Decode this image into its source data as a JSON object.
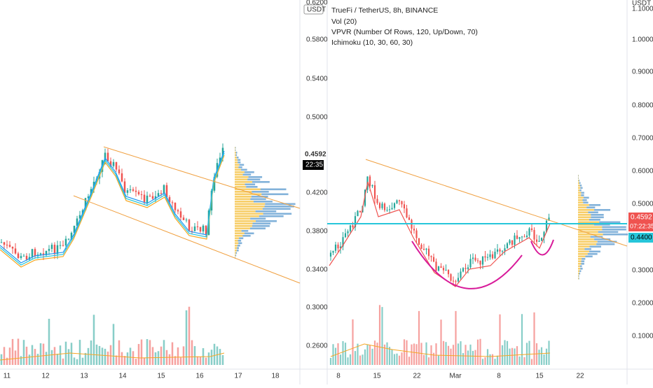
{
  "left_panel": {
    "unit": "USDT",
    "top_tick": "0.6200",
    "yticks": [
      "0.5800",
      "0.5400",
      "0.5000",
      "0.4200",
      "0.3800",
      "0.3400",
      "0.3000",
      "0.2600"
    ],
    "price_tag": "0.4592",
    "countdown": "22:35",
    "xticks": [
      "11",
      "12",
      "13",
      "14",
      "15",
      "16",
      "17",
      "18"
    ]
  },
  "right_panel": {
    "unit": "USDT",
    "header": {
      "symbol": "TrueFi / TetherUS, 8h, BINANCE",
      "indicators": [
        "Vol (20)",
        "VPVR (Number Of Rows, 120, Up/Down, 70)",
        "Ichimoku (10, 30, 60, 30)"
      ]
    },
    "top_tick": "1.1000",
    "yticks": [
      "1.0000",
      "0.9000",
      "0.8000",
      "0.7000",
      "0.6000",
      "0.5000",
      "0.3000",
      "0.2000",
      "0.1000"
    ],
    "price_tag": "0.4592",
    "countdown": "07:22:35",
    "level_tag": "0.4400",
    "xticks": [
      "8",
      "15",
      "22",
      "Mar",
      "8",
      "15",
      "22"
    ]
  }
}
